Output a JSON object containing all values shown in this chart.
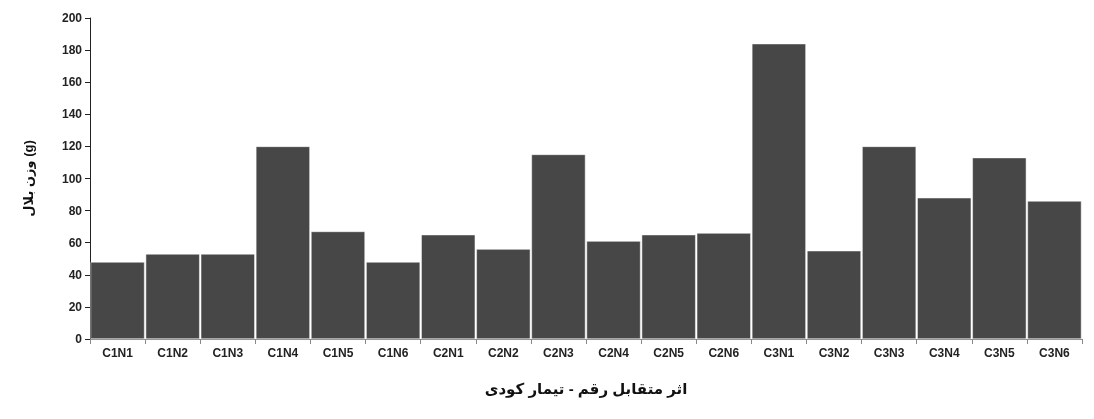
{
  "chart_data": {
    "type": "bar",
    "xlabel": "اثر متقابل رقم - تیمار کودی",
    "ylabel": "وزن بلال (g)",
    "categories": [
      "C1N1",
      "C1N2",
      "C1N3",
      "C1N4",
      "C1N5",
      "C1N6",
      "C2N1",
      "C2N2",
      "C2N3",
      "C2N4",
      "C2N5",
      "C2N6",
      "C3N1",
      "C3N2",
      "C3N3",
      "C3N4",
      "C3N5",
      "C3N6"
    ],
    "values": [
      48,
      53,
      53,
      120,
      67,
      48,
      65,
      56,
      115,
      61,
      65,
      66,
      184,
      55,
      120,
      88,
      113,
      86
    ],
    "color": "#474747",
    "ylim": [
      0,
      200
    ],
    "yticks": [
      0,
      20,
      40,
      60,
      80,
      100,
      120,
      140,
      160,
      180,
      200
    ]
  }
}
